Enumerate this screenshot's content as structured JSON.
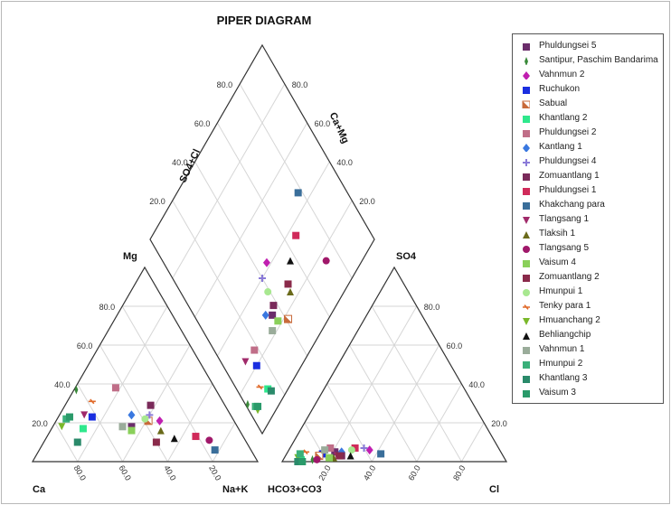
{
  "chart_data": {
    "type": "scatter",
    "subtype": "piper-diagram",
    "title": "PIPER DIAGRAM",
    "axis_labels": {
      "cation_left": "Ca",
      "cation_right": "Na+K",
      "cation_top": "Mg",
      "anion_left": "HCO3+CO3",
      "anion_right": "Cl",
      "anion_top": "SO4",
      "diamond_left": "SO4+Cl",
      "diamond_right": "Ca+Mg"
    },
    "tick_labels": [
      "20.0",
      "40.0",
      "60.0",
      "80.0"
    ],
    "grid": true,
    "legend_position": "right",
    "series": [
      {
        "name": "Phuldungsei 5",
        "marker": "square",
        "color": "#6b2d6b",
        "ca": 47,
        "mg": 18,
        "hco3": 74,
        "so4": 5
      },
      {
        "name": "Santipur, Paschim Bandarima",
        "marker": "diamond-small",
        "color": "#3a8a3a",
        "ca": 62,
        "mg": 37,
        "hco3": 86,
        "so4": 1
      },
      {
        "name": "Vahnmun 2",
        "marker": "diamond",
        "color": "#c01fb0",
        "ca": 33,
        "mg": 21,
        "hco3": 58,
        "so4": 6
      },
      {
        "name": "Ruchukon",
        "marker": "square",
        "color": "#1a2ee0",
        "ca": 62,
        "mg": 23,
        "hco3": 80,
        "so4": 4
      },
      {
        "name": "Sabual",
        "marker": "half-square",
        "color": "#c86a3a",
        "ca": 38,
        "mg": 21,
        "hco3": 82,
        "so4": 3
      },
      {
        "name": "Khantlang 2",
        "marker": "square",
        "color": "#2ee88c",
        "ca": 69,
        "mg": 17,
        "hco3": 91,
        "so4": 1
      },
      {
        "name": "Phuldungsei 2",
        "marker": "square",
        "color": "#c06e88",
        "ca": 44,
        "mg": 38,
        "hco3": 75,
        "so4": 7
      },
      {
        "name": "Kantlang 1",
        "marker": "diamond",
        "color": "#3a78e0",
        "ca": 44,
        "mg": 24,
        "hco3": 71,
        "so4": 5
      },
      {
        "name": "Phuldungsei 4",
        "marker": "star",
        "color": "#8a7ad8",
        "ca": 36,
        "mg": 24,
        "hco3": 60,
        "so4": 7
      },
      {
        "name": "Zomuantlang 1",
        "marker": "square",
        "color": "#7a2a5a",
        "ca": 33,
        "mg": 29,
        "hco3": 72,
        "so4": 3
      },
      {
        "name": "Phuldungsei 1",
        "marker": "square",
        "color": "#d02a5a",
        "ca": 21,
        "mg": 13,
        "hco3": 64,
        "so4": 7
      },
      {
        "name": "Khakchang para",
        "marker": "square",
        "color": "#3a6e9a",
        "ca": 16,
        "mg": 6,
        "hco3": 54,
        "so4": 4
      },
      {
        "name": "Tlangsang 1",
        "marker": "triangle-down",
        "color": "#a02a6a",
        "ca": 65,
        "mg": 24,
        "hco3": 74,
        "so4": 3
      },
      {
        "name": "Tlaksih 1",
        "marker": "triangle",
        "color": "#6a6a1a",
        "ca": 35,
        "mg": 16,
        "hco3": 76,
        "so4": 2
      },
      {
        "name": "Tlangsang 5",
        "marker": "circle",
        "color": "#a0186a",
        "ca": 16,
        "mg": 11,
        "hco3": 84,
        "so4": 1
      },
      {
        "name": "Vaisum 4",
        "marker": "square",
        "color": "#8ad05a",
        "ca": 48,
        "mg": 16,
        "hco3": 78,
        "so4": 2
      },
      {
        "name": "Zomuantlang 2",
        "marker": "square",
        "color": "#8a2a4a",
        "ca": 40,
        "mg": 10,
        "hco3": 73,
        "so4": 3
      },
      {
        "name": "Hmunpui 1",
        "marker": "circle",
        "color": "#a8e890",
        "ca": 39,
        "mg": 22,
        "hco3": 66,
        "so4": 6
      },
      {
        "name": "Tenky para 1",
        "marker": "dash",
        "color": "#e06a2a",
        "ca": 58,
        "mg": 31,
        "hco3": 87,
        "so4": 5
      },
      {
        "name": "Hmuanchang 2",
        "marker": "triangle-down",
        "color": "#7ab82a",
        "ca": 78,
        "mg": 18,
        "hco3": 92,
        "so4": 2
      },
      {
        "name": "Behliangchip",
        "marker": "triangle",
        "color": "#111111",
        "ca": 31,
        "mg": 12,
        "hco3": 68,
        "so4": 3
      },
      {
        "name": "Vahnmun 1",
        "marker": "square",
        "color": "#9aac9a",
        "ca": 51,
        "mg": 18,
        "hco3": 78,
        "so4": 6
      },
      {
        "name": "Hmunpui 2",
        "marker": "square",
        "color": "#3ab07a",
        "ca": 74,
        "mg": 22,
        "hco3": 90,
        "so4": 4
      },
      {
        "name": "Khantlang 3",
        "marker": "square",
        "color": "#2a8a6a",
        "ca": 75,
        "mg": 10,
        "hco3": 93,
        "so4": 0
      },
      {
        "name": "Vaisum 3",
        "marker": "square",
        "color": "#2a9a6a",
        "ca": 72,
        "mg": 23,
        "hco3": 91,
        "so4": 0
      }
    ]
  }
}
